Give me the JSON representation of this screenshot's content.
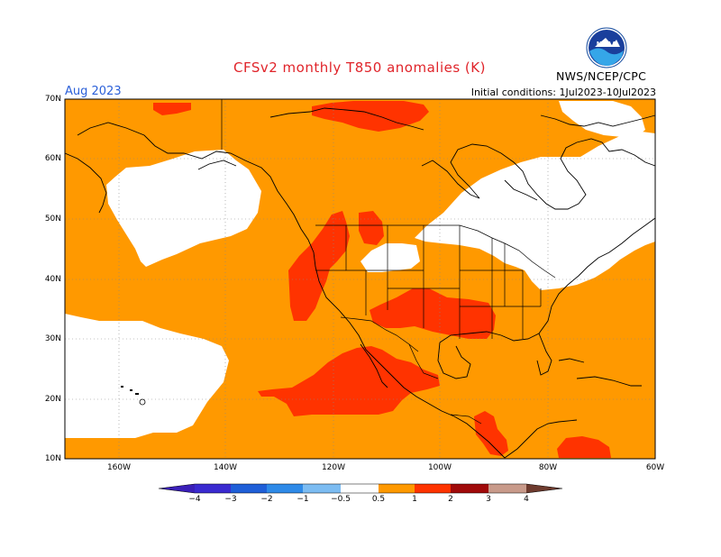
{
  "title": "CFSv2 monthly T850 anomalies (K)",
  "month": "Aug 2023",
  "initial_conditions": "Initial conditions: 1Jul2023-10Jul2023",
  "agency": "NWS/NCEP/CPC",
  "logo_icon": "noaa-logo-icon",
  "lat_labels": [
    "70N",
    "60N",
    "50N",
    "40N",
    "30N",
    "20N",
    "10N"
  ],
  "lon_labels": [
    "160W",
    "140W",
    "120W",
    "100W",
    "80W",
    "60W"
  ],
  "colorbar": {
    "labels": [
      "-4",
      "-3",
      "-2",
      "-1",
      "-0.5",
      "0.5",
      "1",
      "2",
      "3",
      "4"
    ],
    "colors": [
      "#3a1fb8",
      "#1f4fd6",
      "#2e7be8",
      "#4ea3ee",
      "#88c6f5",
      "#ffffff",
      "#ff9900",
      "#ff3300",
      "#a00a0a",
      "#c89a8a",
      "#6e3b2e"
    ]
  },
  "colors": {
    "warm_0_5_1": "#ff9900",
    "warm_1_2": "#ff3300",
    "neutral": "#ffffff"
  }
}
